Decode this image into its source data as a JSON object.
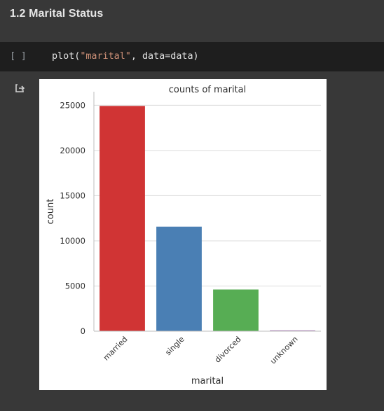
{
  "section": {
    "heading": "1.2 Marital Status"
  },
  "code_cell": {
    "run_label": "[ ]",
    "code_func": "plot(",
    "code_arg": "\"marital\"",
    "code_rest": ", data=data)"
  },
  "output": {
    "icon": "output-arrow-icon"
  },
  "chart_data": {
    "type": "bar",
    "title": "counts of  marital",
    "xlabel": "marital",
    "ylabel": "count",
    "categories": [
      "married",
      "single",
      "divorced",
      "unknown"
    ],
    "values": [
      24928,
      11568,
      4612,
      80
    ],
    "colors": [
      "#d03434",
      "#4a7fb4",
      "#57ad54",
      "#8e4f9f"
    ],
    "yticks": [
      0,
      5000,
      10000,
      15000,
      20000,
      25000
    ],
    "ylim": [
      0,
      26500
    ],
    "grid": true
  }
}
